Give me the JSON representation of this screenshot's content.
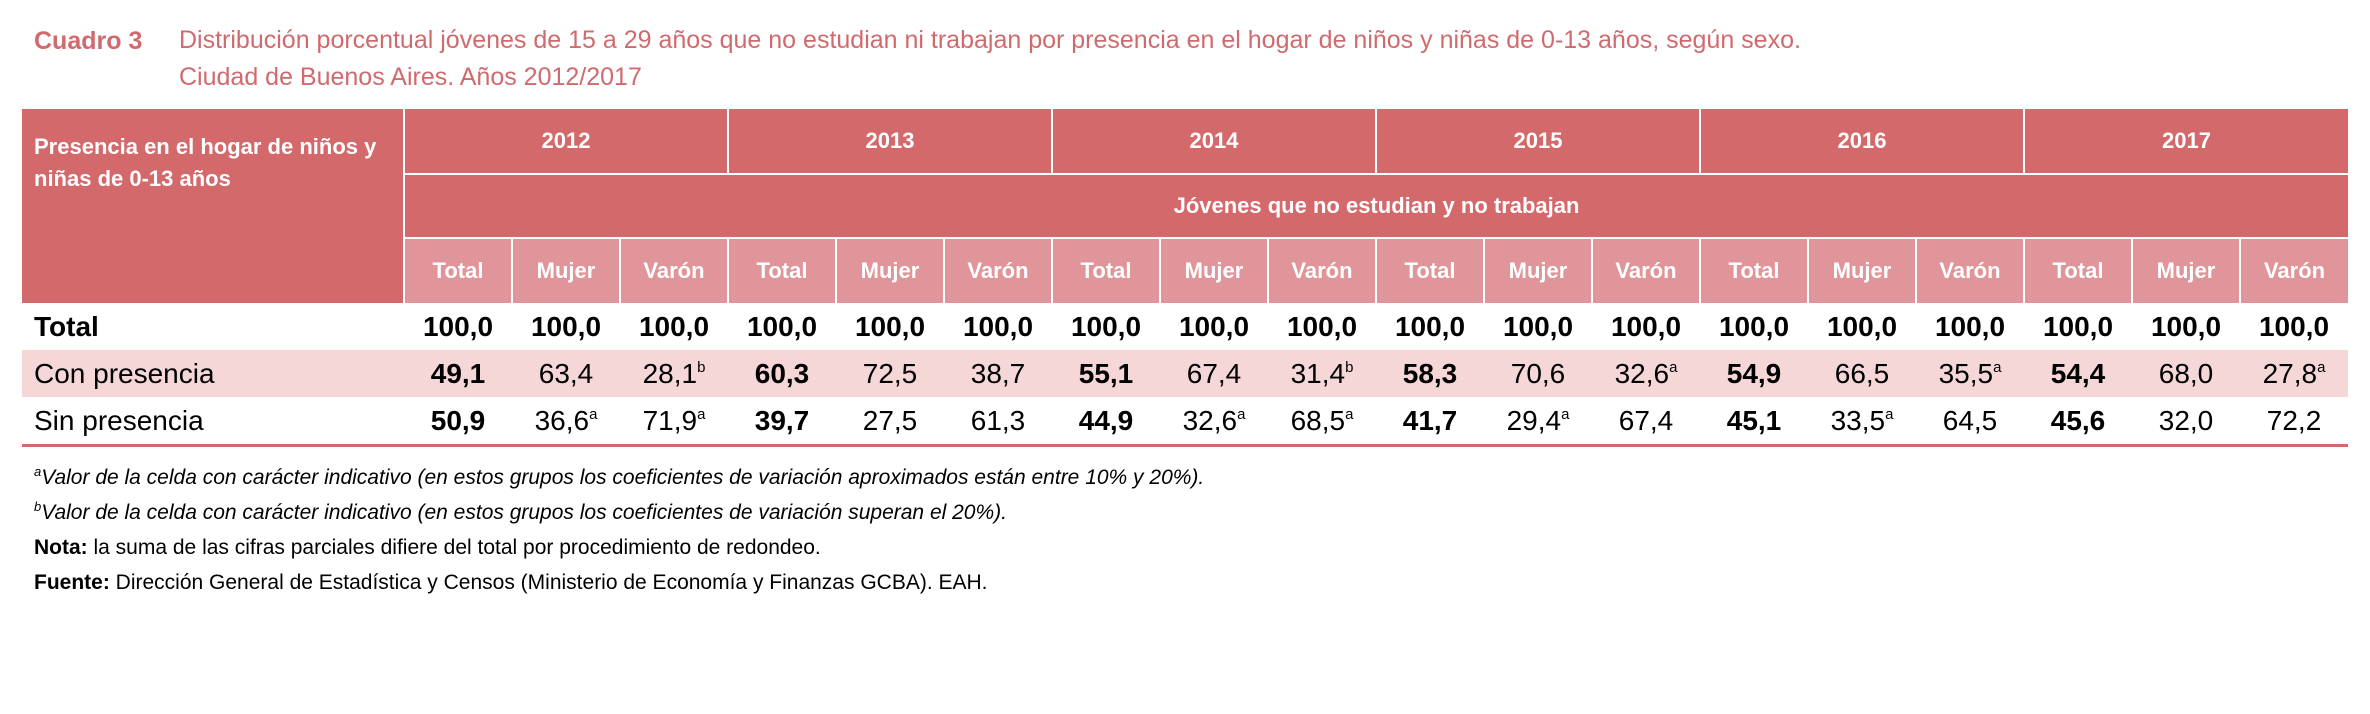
{
  "title": {
    "label": "Cuadro 3",
    "line1": "Distribución porcentual jóvenes de 15 a 29 años que no estudian ni trabajan por presencia en el hogar de niños y niñas de 0-13 años, según sexo.",
    "line2": "Ciudad de Buenos Aires. Años 2012/2017"
  },
  "table": {
    "stub_header": "Presencia en el hogar de niños y niñas de 0-13 años",
    "years": [
      "2012",
      "2013",
      "2014",
      "2015",
      "2016",
      "2017"
    ],
    "subtitle": "Jóvenes que no estudian y no trabajan",
    "col_labels": [
      "Total",
      "Mujer",
      "Varón"
    ],
    "rows": [
      {
        "label": "Total",
        "cells": [
          {
            "v": "100,0"
          },
          {
            "v": "100,0"
          },
          {
            "v": "100,0"
          },
          {
            "v": "100,0"
          },
          {
            "v": "100,0"
          },
          {
            "v": "100,0"
          },
          {
            "v": "100,0"
          },
          {
            "v": "100,0"
          },
          {
            "v": "100,0"
          },
          {
            "v": "100,0"
          },
          {
            "v": "100,0"
          },
          {
            "v": "100,0"
          },
          {
            "v": "100,0"
          },
          {
            "v": "100,0"
          },
          {
            "v": "100,0"
          },
          {
            "v": "100,0"
          },
          {
            "v": "100,0"
          },
          {
            "v": "100,0"
          }
        ]
      },
      {
        "label": "Con presencia",
        "cells": [
          {
            "v": "49,1"
          },
          {
            "v": "63,4"
          },
          {
            "v": "28,1",
            "n": "b"
          },
          {
            "v": "60,3"
          },
          {
            "v": "72,5"
          },
          {
            "v": "38,7"
          },
          {
            "v": "55,1"
          },
          {
            "v": "67,4"
          },
          {
            "v": "31,4",
            "n": "b"
          },
          {
            "v": "58,3"
          },
          {
            "v": "70,6"
          },
          {
            "v": "32,6",
            "n": "a"
          },
          {
            "v": "54,9"
          },
          {
            "v": "66,5"
          },
          {
            "v": "35,5",
            "n": "a"
          },
          {
            "v": "54,4"
          },
          {
            "v": "68,0"
          },
          {
            "v": "27,8",
            "n": "a"
          }
        ]
      },
      {
        "label": "Sin presencia",
        "cells": [
          {
            "v": "50,9"
          },
          {
            "v": "36,6",
            "n": "a"
          },
          {
            "v": "71,9",
            "n": "a"
          },
          {
            "v": "39,7"
          },
          {
            "v": "27,5"
          },
          {
            "v": "61,3"
          },
          {
            "v": "44,9"
          },
          {
            "v": "32,6",
            "n": "a"
          },
          {
            "v": "68,5",
            "n": "a"
          },
          {
            "v": "41,7"
          },
          {
            "v": "29,4",
            "n": "a"
          },
          {
            "v": "67,4"
          },
          {
            "v": "45,1"
          },
          {
            "v": "33,5",
            "n": "a"
          },
          {
            "v": "64,5"
          },
          {
            "v": "45,6"
          },
          {
            "v": "32,0"
          },
          {
            "v": "72,2"
          }
        ]
      }
    ]
  },
  "notes": {
    "a_mark": "a",
    "a_text": "Valor de la celda con carácter indicativo (en estos grupos los coeficientes de variación aproximados están entre 10% y 20%).",
    "b_mark": "b",
    "b_text": "Valor de la celda con carácter indicativo (en estos grupos los coeficientes de variación superan el 20%).",
    "nota_label": "Nota:",
    "nota_text": " la suma de las cifras parciales difiere del total por procedimiento de redondeo.",
    "fuente_label": "Fuente:",
    "fuente_text": " Dirección General de Estadística y Censos (Ministerio de Economía y Finanzas GCBA). EAH."
  },
  "colors": {
    "header": "#d4696c",
    "subheader": "#e0959a",
    "shaded_row": "#f5d7d8",
    "title": "#d06a6e"
  }
}
